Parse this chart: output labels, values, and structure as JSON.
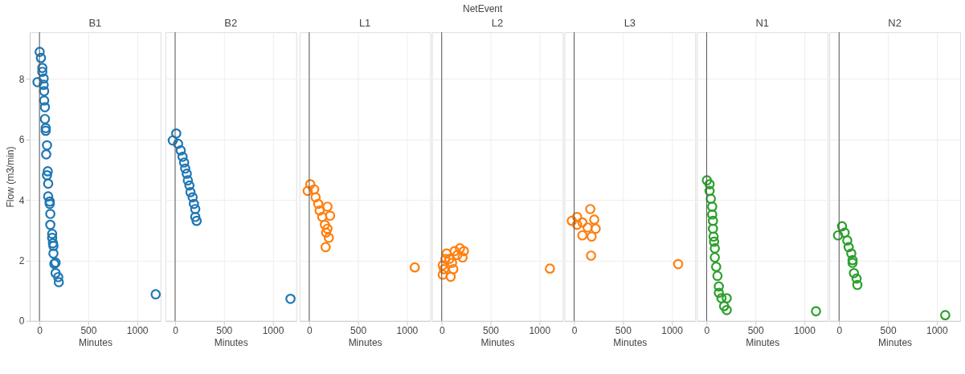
{
  "chart_data": [
    {
      "type": "scatter",
      "title": "B1",
      "xlabel": "Minutes",
      "ylabel": "Flow (m3/min)",
      "annotations": [
        "NetEvent"
      ],
      "xlim": [
        -100,
        1240
      ],
      "ylim": [
        0,
        9.55
      ],
      "xticks": [
        0,
        500,
        1000
      ],
      "yticks": [
        0,
        2,
        4,
        6,
        8
      ],
      "grid": true,
      "marker": "circle",
      "ref_lines": [
        {
          "axis": "x",
          "value": 0,
          "color": "#555555"
        }
      ],
      "series": [
        {
          "color": "#1f77b4",
          "x": [
            2,
            15,
            -20,
            29,
            29,
            43,
            43,
            48,
            48,
            56,
            56,
            64,
            64,
            77,
            69,
            85,
            77,
            89,
            89,
            105,
            105,
            111,
            111,
            130,
            130,
            138,
            143,
            143,
            152,
            165,
            165,
            192,
            198,
            1190
          ],
          "values": [
            8.9,
            8.7,
            7.9,
            8.37,
            8.24,
            8.02,
            7.81,
            7.6,
            7.29,
            7.07,
            6.68,
            6.38,
            6.29,
            5.81,
            5.51,
            4.95,
            4.82,
            4.54,
            4.12,
            3.95,
            3.87,
            3.54,
            3.18,
            2.88,
            2.75,
            2.57,
            2.48,
            2.23,
            1.89,
            1.93,
            1.58,
            1.45,
            1.28,
            0.88
          ]
        }
      ]
    },
    {
      "type": "scatter",
      "title": "B2",
      "xlabel": "Minutes",
      "xlim": [
        -100,
        1240
      ],
      "ylim": [
        0,
        9.55
      ],
      "xticks": [
        0,
        500,
        1000
      ],
      "yticks": [
        0,
        2,
        4,
        6,
        8
      ],
      "tick_labels": "x",
      "grid": true,
      "marker": "circle",
      "ref_lines": [
        {
          "axis": "x",
          "value": 0,
          "color": "#555555"
        }
      ],
      "series": [
        {
          "color": "#1f77b4",
          "x": [
            11,
            -24,
            30,
            57,
            76,
            92,
            103,
            119,
            130,
            146,
            157,
            179,
            192,
            206,
            206,
            220,
            1181
          ],
          "values": [
            6.2,
            5.97,
            5.86,
            5.64,
            5.43,
            5.24,
            5.04,
            4.87,
            4.65,
            4.48,
            4.26,
            4.09,
            3.87,
            3.7,
            3.44,
            3.31,
            0.73
          ]
        }
      ]
    },
    {
      "type": "scatter",
      "title": "L1",
      "xlabel": "Minutes",
      "xlim": [
        -100,
        1240
      ],
      "ylim": [
        0,
        9.55
      ],
      "xticks": [
        0,
        500,
        1000
      ],
      "yticks": [
        0,
        2,
        4,
        6,
        8
      ],
      "tick_labels": "x",
      "grid": true,
      "marker": "circle",
      "ref_lines": [
        {
          "axis": "x",
          "value": 0,
          "color": "#555555"
        }
      ],
      "series": [
        {
          "color": "#ff7f0e",
          "x": [
            11,
            -16,
            51,
            65,
            92,
            187,
            106,
            214,
            133,
            160,
            187,
            173,
            201,
            168,
            1081
          ],
          "values": [
            4.52,
            4.3,
            4.35,
            4.09,
            3.87,
            3.78,
            3.65,
            3.48,
            3.44,
            3.18,
            3.05,
            2.92,
            2.75,
            2.44,
            1.77
          ]
        }
      ]
    },
    {
      "type": "scatter",
      "title": "L2",
      "xlabel": "Minutes",
      "xlim": [
        -100,
        1240
      ],
      "ylim": [
        0,
        9.55
      ],
      "xticks": [
        0,
        500,
        1000
      ],
      "yticks": [
        0,
        2,
        4,
        6,
        8
      ],
      "tick_labels": "x",
      "grid": true,
      "marker": "circle",
      "ref_lines": [
        {
          "axis": "x",
          "value": 0,
          "color": "#555555"
        }
      ],
      "series": [
        {
          "color": "#ff7f0e",
          "x": [
            11,
            11,
            92,
            119,
            51,
            79,
            133,
            187,
            228,
            214,
            160,
            38,
            106,
            24,
            1108
          ],
          "values": [
            1.84,
            1.53,
            1.46,
            1.71,
            2.23,
            2.05,
            2.31,
            2.4,
            2.31,
            2.1,
            2.18,
            2.05,
            1.92,
            1.71,
            1.73
          ]
        }
      ]
    },
    {
      "type": "scatter",
      "title": "L3",
      "xlabel": "Minutes",
      "xlim": [
        -100,
        1240
      ],
      "ylim": [
        0,
        9.55
      ],
      "xticks": [
        0,
        500,
        1000
      ],
      "yticks": [
        0,
        2,
        4,
        6,
        8
      ],
      "tick_labels": "x",
      "grid": true,
      "marker": "circle",
      "ref_lines": [
        {
          "axis": "x",
          "value": 0,
          "color": "#555555"
        }
      ],
      "series": [
        {
          "color": "#ff7f0e",
          "x": [
            165,
            -24,
            30,
            84,
            206,
            220,
            84,
            179,
            138,
            30,
            173,
            1065
          ],
          "values": [
            3.7,
            3.31,
            3.44,
            3.26,
            3.35,
            3.05,
            2.83,
            2.79,
            3.09,
            3.18,
            2.16,
            1.88
          ]
        }
      ]
    },
    {
      "type": "scatter",
      "title": "N1",
      "xlabel": "Minutes",
      "xlim": [
        -100,
        1240
      ],
      "ylim": [
        0,
        9.55
      ],
      "xticks": [
        0,
        500,
        1000
      ],
      "yticks": [
        0,
        2,
        4,
        6,
        8
      ],
      "tick_labels": "x",
      "grid": true,
      "marker": "circle",
      "ref_lines": [
        {
          "axis": "x",
          "value": 0,
          "color": "#555555"
        }
      ],
      "series": [
        {
          "color": "#2ca02c",
          "x": [
            3,
            30,
            30,
            43,
            57,
            57,
            65,
            65,
            71,
            76,
            84,
            84,
            98,
            111,
            125,
            125,
            152,
            206,
            179,
            206,
            1120
          ],
          "values": [
            4.65,
            4.52,
            4.3,
            4.04,
            3.78,
            3.52,
            3.31,
            3.05,
            2.79,
            2.62,
            2.4,
            2.1,
            1.79,
            1.49,
            1.14,
            0.93,
            0.75,
            0.75,
            0.49,
            0.36,
            0.32
          ]
        }
      ]
    },
    {
      "type": "scatter",
      "title": "N2",
      "xlabel": "Minutes",
      "xlim": [
        -100,
        1240
      ],
      "ylim": [
        0,
        9.55
      ],
      "xticks": [
        0,
        500,
        1000
      ],
      "yticks": [
        0,
        2,
        4,
        6,
        8
      ],
      "tick_labels": "x",
      "grid": true,
      "marker": "circle",
      "ref_lines": [
        {
          "axis": "x",
          "value": 0,
          "color": "#555555"
        }
      ],
      "series": [
        {
          "color": "#2ca02c",
          "x": [
            30,
            -11,
            57,
            84,
            98,
            125,
            138,
            138,
            152,
            179,
            187,
            1087
          ],
          "values": [
            3.13,
            2.83,
            2.92,
            2.66,
            2.44,
            2.23,
            2.01,
            1.92,
            1.58,
            1.4,
            1.19,
            0.19
          ]
        }
      ]
    }
  ]
}
